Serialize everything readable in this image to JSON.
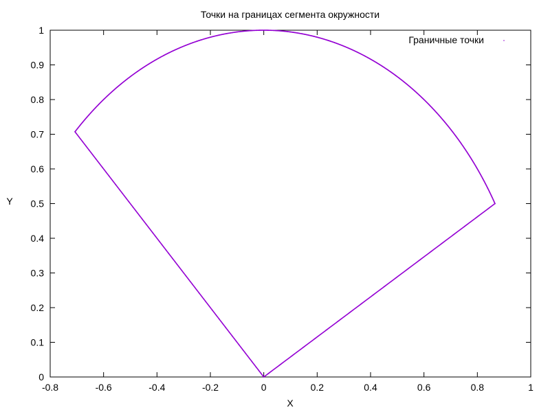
{
  "chart_data": {
    "type": "scatter",
    "title": "Точки на границах сегмента окружности",
    "xlabel": "X",
    "ylabel": "Y",
    "xlim": [
      -0.8,
      1
    ],
    "ylim": [
      0,
      1
    ],
    "x_ticks": [
      -0.8,
      -0.6,
      -0.4,
      -0.2,
      0,
      0.2,
      0.4,
      0.6,
      0.8,
      1
    ],
    "y_ticks": [
      0,
      0.1,
      0.2,
      0.3,
      0.4,
      0.5,
      0.6,
      0.7,
      0.8,
      0.9,
      1
    ],
    "x_tick_labels": [
      "-0.8",
      "-0.6",
      "-0.4",
      "-0.2",
      "0",
      "0.2",
      "0.4",
      "0.6",
      "0.8",
      "1"
    ],
    "y_tick_labels": [
      "0",
      "0.1",
      "0.2",
      "0.3",
      "0.4",
      "0.5",
      "0.6",
      "0.7",
      "0.8",
      "0.9",
      "1"
    ],
    "grid": false,
    "legend_position": "top-right",
    "series": [
      {
        "name": "Граничные точки",
        "color": "#9400d3",
        "shape": "circle sector, radius 1, angles 30° to 135°",
        "vertices": [
          [
            0,
            0
          ],
          [
            0.866,
            0.5
          ],
          [
            0,
            1
          ],
          [
            -0.707,
            0.707
          ]
        ],
        "radius": 1,
        "angle_start_deg": 30,
        "angle_end_deg": 135
      }
    ]
  }
}
